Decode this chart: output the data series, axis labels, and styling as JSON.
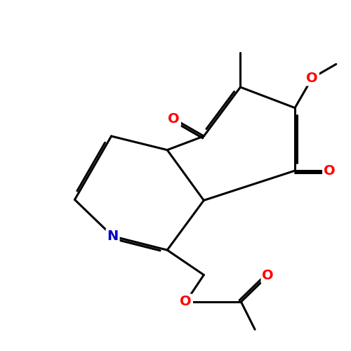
{
  "bg_color": "#ffffff",
  "bond_color": "#000000",
  "bond_lw": 2.2,
  "dbo": 0.065,
  "atom_colors": {
    "O": "#ff0000",
    "N": "#0000cc"
  },
  "font_size": 14,
  "fig_size": [
    5.0,
    5.0
  ],
  "dpi": 100,
  "xlim": [
    0,
    10
  ],
  "ylim": [
    0,
    10
  ]
}
